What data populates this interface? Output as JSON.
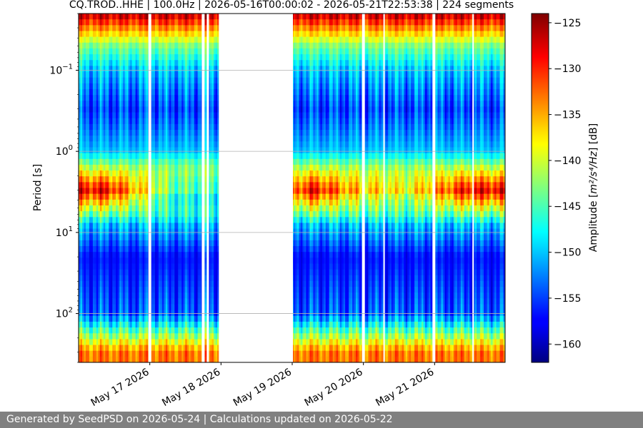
{
  "footer_text": "Generated by SeedPSD on 2026-05-24 | Calculations updated on 2026-05-22",
  "chart_data": {
    "type": "heatmap",
    "title": "CQ.TROD..HHE | 100.0Hz | 2026-05-16T00:00:02 - 2026-05-21T22:53:38 | 224 segments",
    "ylabel": "Period [s]",
    "y_scale": "log",
    "y_inverted": true,
    "ylim": [
      0.02,
      400
    ],
    "y_ticks": [
      {
        "value": 0.1,
        "base": "10",
        "exp": "−1"
      },
      {
        "value": 1,
        "base": "10",
        "exp": "0"
      },
      {
        "value": 10,
        "base": "10",
        "exp": "1"
      },
      {
        "value": 100,
        "base": "10",
        "exp": "2"
      }
    ],
    "grid": true,
    "x_ticks": [
      "May 17 2026",
      "May 18 2026",
      "May 19 2026",
      "May 20 2026",
      "May 21 2026"
    ],
    "xlim_days": [
      0,
      5.99
    ],
    "colorbar": {
      "label_prefix": "Amplitude [",
      "label_unit": "m²/s⁴/Hz",
      "label_suffix": "] [dB]",
      "min": -162,
      "max": -124,
      "ticks": [
        -125,
        -130,
        -135,
        -140,
        -145,
        -150,
        -155,
        -160
      ],
      "colormap": "jet"
    },
    "gaps_days": [
      [
        0.98,
        1.02
      ],
      [
        1.73,
        1.77
      ],
      [
        1.8,
        1.83
      ],
      [
        1.97,
        3.01
      ],
      [
        3.98,
        4.02
      ],
      [
        4.28,
        4.3
      ],
      [
        4.97,
        5.01
      ],
      [
        5.53,
        5.55
      ]
    ],
    "period_bands": [
      {
        "period": 0.02,
        "amplitude_db": -126
      },
      {
        "period": 0.05,
        "amplitude_db": -143
      },
      {
        "period": 0.1,
        "amplitude_db": -150
      },
      {
        "period": 0.3,
        "amplitude_db": -155
      },
      {
        "period": 1,
        "amplitude_db": -150
      },
      {
        "period": 3,
        "amplitude_db": -128
      },
      {
        "period": 8,
        "amplitude_db": -150
      },
      {
        "period": 20,
        "amplitude_db": -157
      },
      {
        "period": 100,
        "amplitude_db": -154
      },
      {
        "period": 300,
        "amplitude_db": -133
      }
    ],
    "microseism_strength_by_day": [
      {
        "day": 0.4,
        "strength": 1.0
      },
      {
        "day": 1.3,
        "strength": 0.25
      },
      {
        "day": 1.9,
        "strength": 0.15
      },
      {
        "day": 3.3,
        "strength": 1.0
      },
      {
        "day": 3.8,
        "strength": 0.7
      },
      {
        "day": 4.6,
        "strength": 0.5
      },
      {
        "day": 5.5,
        "strength": 1.0
      }
    ]
  }
}
